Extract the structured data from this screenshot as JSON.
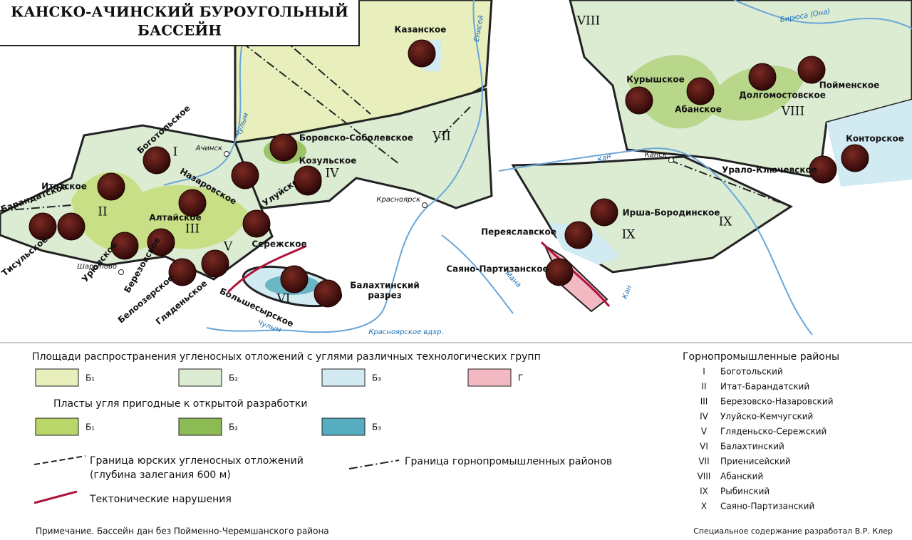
{
  "header": {
    "title_lines": [
      "КАНСКО-АЧИНСКИЙ БУРОУГОЛЬНЫЙ",
      "БАССЕЙН"
    ]
  },
  "map": {
    "deposits": [
      "Казанское",
      "Боготольское",
      "Итатское",
      "Барандатское",
      "Тисульское",
      "Урюпское",
      "Березовское",
      "Белоозерское",
      "Гляденьское",
      "Алтайское",
      "Назаровское",
      "Сережское",
      "Улуйское",
      "Боровско-Соболевское",
      "Козульское",
      "Большесырское",
      "Балахтинский",
      "разрез",
      "Переяславское",
      "Саяно-Партизанское",
      "Ирша-Бородинское",
      "Курышское",
      "Абанское",
      "Долгомостовское",
      "Пойменское",
      "Конторское",
      "Урало-Ключевское"
    ],
    "towns": [
      "Ачинск",
      "Шарыпово",
      "Красноярск",
      "Канск"
    ],
    "rivers": [
      "Енисей",
      "Чулым",
      "Чулым",
      "Кан",
      "Кан",
      "Мана",
      "Бирюса (Она)",
      "Красноярское вдхр."
    ],
    "region_marks": [
      "I",
      "II",
      "III",
      "IV",
      "V",
      "VI",
      "VII",
      "VIII",
      "VIII",
      "IX",
      "IX"
    ]
  },
  "legend": {
    "areas_heading": "Площади распространения угленосных отложений с углями различных технологических групп",
    "areas": [
      "Б₁",
      "Б₂",
      "Б₃",
      "Г"
    ],
    "open_heading": "Пласты угля пригодные к открытой разработки",
    "open": [
      "Б₁",
      "Б₂",
      "Б₃"
    ],
    "jurassic_boundary": [
      "Граница юрских угленосных отложений",
      "(глубина залегания 600 м)"
    ],
    "district_boundary": "Граница горнопромышленных районов",
    "tectonic": "Тектонические нарушения",
    "note": "Примечание. Бассейн дан без Пойменно-Черемшанского района",
    "credit": "Специальное содержание разработал В.Р. Клер"
  },
  "districts": {
    "heading": "Горнопромышленные районы",
    "items": [
      [
        "I",
        "Боготольский"
      ],
      [
        "II",
        "Итат-Барандатский"
      ],
      [
        "III",
        "Березовско-Назаровский"
      ],
      [
        "IV",
        "Улуйско-Кемчугский"
      ],
      [
        "V",
        "Гляденьско-Сережский"
      ],
      [
        "VI",
        "Балахтинский"
      ],
      [
        "VII",
        "Приенисейский"
      ],
      [
        "VIII",
        "Абанский"
      ],
      [
        "IX",
        "Рыбинский"
      ],
      [
        "X",
        "Саяно-Партизанский"
      ]
    ]
  }
}
